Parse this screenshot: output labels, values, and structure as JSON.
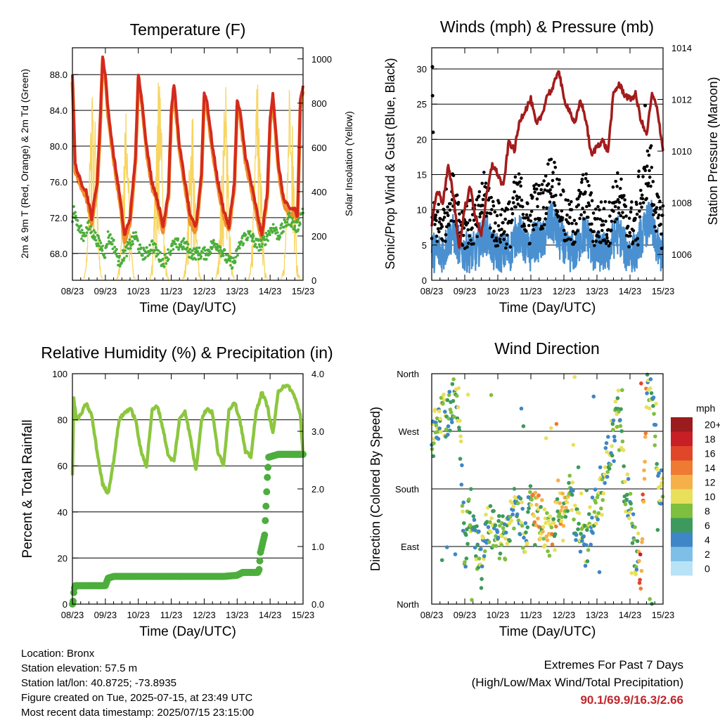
{
  "chart_data": [
    {
      "type": "line",
      "title": "Temperature (F)",
      "xlabel": "Time (Day/UTC)",
      "ylabel": "2m & 9m T (Red, Orange) & 2m Td (Green)",
      "ylabel_right": "Solar Insolation (Yellow)",
      "x_ticks": [
        "08/23",
        "09/23",
        "10/23",
        "11/23",
        "12/23",
        "13/23",
        "14/23",
        "15/23"
      ],
      "y_ticks": [
        "68.0",
        "72.0",
        "76.0",
        "80.0",
        "84.0",
        "88.0"
      ],
      "y_right_ticks": [
        "0",
        "200",
        "400",
        "600",
        "800",
        "1000"
      ],
      "ylim": [
        65,
        91
      ],
      "ylim_right": [
        0,
        1050
      ],
      "grid": true,
      "colors": {
        "t2m": "#d42a1e",
        "t9m": "#f0902a",
        "td": "#4cae3c",
        "solar": "#f7d560"
      },
      "series": [
        {
          "name": "2m T",
          "day_hours": [
            0,
            2,
            6,
            10,
            14,
            18,
            20,
            22,
            24,
            26,
            30,
            34,
            38,
            42,
            46,
            48,
            50,
            54,
            58,
            62,
            66,
            70,
            72,
            74,
            78,
            82,
            86,
            90,
            94,
            96,
            98,
            102,
            106,
            110,
            114,
            118,
            120,
            122,
            126,
            130,
            134,
            138,
            142,
            144,
            146,
            150,
            154,
            158,
            162,
            164,
            166,
            168
          ],
          "values": [
            88,
            78,
            76,
            75,
            72,
            76,
            82,
            90,
            88,
            84,
            79,
            75,
            70,
            72,
            79,
            88,
            86,
            80,
            76,
            74,
            71,
            75,
            84,
            87,
            80,
            76,
            72,
            71,
            77,
            86,
            85,
            80,
            76,
            73,
            71,
            76,
            85,
            84,
            79,
            76,
            73,
            70,
            75,
            83,
            86,
            78,
            74,
            73,
            73,
            72,
            85,
            87
          ]
        },
        {
          "name": "2m Td",
          "day_hours": [
            0,
            1,
            4,
            8,
            12,
            16,
            20,
            24,
            26,
            30,
            34,
            38,
            42,
            46,
            50,
            54,
            58,
            62,
            66,
            70,
            74,
            78,
            82,
            86,
            90,
            94,
            98,
            102,
            106,
            110,
            114,
            118,
            122,
            126,
            130,
            134,
            138,
            142,
            146,
            150,
            154,
            158,
            162,
            164,
            166,
            168
          ],
          "values": [
            72,
            73,
            71,
            70,
            71,
            70,
            69,
            68,
            70,
            69,
            67,
            68,
            69,
            70,
            68,
            68,
            69,
            68,
            67,
            68,
            69,
            69,
            69,
            68,
            68,
            68,
            68,
            69,
            69,
            68,
            67,
            67,
            69,
            70,
            70,
            69,
            69,
            70,
            71,
            70,
            71,
            72,
            71,
            71,
            72,
            73
          ]
        },
        {
          "name": "Solar Insolation",
          "peak_values": [
            980,
            780,
            1000,
            800,
            960,
            920,
            1000
          ]
        }
      ]
    },
    {
      "type": "scatter",
      "title": "Winds (mph) & Pressure (mb)",
      "xlabel": "Time (Day/UTC)",
      "ylabel": "Sonic/Prop Wind & Gust (Blue, Black)",
      "ylabel_right": "Station Pressure (Maroon)",
      "x_ticks": [
        "08/23",
        "09/23",
        "10/23",
        "11/23",
        "12/23",
        "13/23",
        "14/23",
        "15/23"
      ],
      "y_ticks": [
        "0",
        "5",
        "10",
        "15",
        "20",
        "25",
        "30"
      ],
      "y_right_ticks": [
        "1006",
        "1008",
        "1010",
        "1012",
        "1014"
      ],
      "ylim": [
        0,
        33
      ],
      "ylim_right": [
        1005,
        1014
      ],
      "grid": true,
      "colors": {
        "wind": "#4a90d0",
        "gust": "#000000",
        "pressure": "#a31c1c"
      },
      "series": [
        {
          "name": "Station Pressure",
          "day_hours": [
            0,
            4,
            8,
            12,
            16,
            20,
            24,
            28,
            32,
            36,
            40,
            44,
            48,
            52,
            56,
            60,
            64,
            68,
            72,
            76,
            80,
            84,
            88,
            92,
            96,
            100,
            104,
            108,
            112,
            116,
            120,
            124,
            128,
            132,
            136,
            140,
            144,
            148,
            152,
            156,
            160,
            164,
            168
          ],
          "values": [
            1007.2,
            1008.5,
            1008.0,
            1009.4,
            1008.2,
            1006.2,
            1007.8,
            1008.6,
            1007.4,
            1006.8,
            1008.3,
            1009.5,
            1009.1,
            1008.6,
            1010.4,
            1010.0,
            1011.2,
            1011.6,
            1012.0,
            1011.0,
            1011.4,
            1012.2,
            1012.4,
            1013.2,
            1012.0,
            1011.6,
            1011.0,
            1012.0,
            1011.2,
            1009.8,
            1010.2,
            1010.4,
            1010.0,
            1012.2,
            1012.6,
            1012.2,
            1012.0,
            1012.2,
            1011.2,
            1010.6,
            1012.2,
            1011.6,
            1010.0
          ]
        },
        {
          "name": "Wind",
          "typical_range": [
            1,
            9
          ]
        },
        {
          "name": "Gust",
          "typical_range": [
            3,
            15
          ],
          "max": 30.3
        }
      ]
    },
    {
      "type": "line",
      "title": "Relative Humidity (%) & Precipitation (in)",
      "xlabel": "Time (Day/UTC)",
      "ylabel": "Percent & Total Rainfall",
      "x_ticks": [
        "08/23",
        "09/23",
        "10/23",
        "11/23",
        "12/23",
        "13/23",
        "14/23",
        "15/23"
      ],
      "y_ticks": [
        "0",
        "20",
        "40",
        "60",
        "80",
        "100"
      ],
      "y_right_ticks": [
        "0.0",
        "1.0",
        "2.0",
        "3.0",
        "4.0"
      ],
      "ylim": [
        0,
        100
      ],
      "ylim_right": [
        0,
        4.0
      ],
      "grid": true,
      "colors": {
        "rh": "#8cc63f",
        "precip": "#4cae3c"
      },
      "series": [
        {
          "name": "Relative Humidity",
          "day_hours": [
            0,
            1,
            3,
            6,
            10,
            14,
            18,
            22,
            26,
            30,
            34,
            38,
            42,
            46,
            50,
            54,
            58,
            62,
            66,
            70,
            74,
            78,
            82,
            86,
            90,
            94,
            98,
            102,
            106,
            110,
            114,
            118,
            122,
            126,
            130,
            134,
            138,
            142,
            146,
            150,
            154,
            158,
            162,
            166,
            168
          ],
          "values": [
            56,
            89,
            80,
            82,
            87,
            82,
            66,
            52,
            48,
            62,
            80,
            83,
            85,
            80,
            66,
            60,
            84,
            86,
            76,
            64,
            62,
            80,
            84,
            72,
            58,
            80,
            85,
            83,
            66,
            60,
            84,
            88,
            80,
            66,
            64,
            84,
            92,
            86,
            74,
            92,
            95,
            94,
            90,
            82,
            65
          ]
        },
        {
          "name": "Total Precipitation",
          "day_hours": [
            0,
            0.5,
            1,
            1.5,
            2,
            14,
            24,
            26,
            30,
            60,
            90,
            110,
            120,
            124,
            135,
            136,
            137,
            140,
            141,
            142,
            143,
            150,
            168
          ],
          "values": [
            0,
            0.05,
            0.2,
            0.28,
            0.32,
            0.32,
            0.32,
            0.45,
            0.48,
            0.48,
            0.48,
            0.48,
            0.5,
            0.55,
            0.55,
            0.6,
            0.9,
            1.2,
            1.7,
            2.2,
            2.55,
            2.6,
            2.6
          ]
        }
      ]
    },
    {
      "type": "scatter",
      "title": "Wind Direction",
      "xlabel": "Time (Day/UTC)",
      "ylabel": "Direction (Colored By Speed)",
      "x_ticks": [
        "08/23",
        "09/23",
        "10/23",
        "11/23",
        "12/23",
        "13/23",
        "14/23",
        "15/23"
      ],
      "y_ticks": [
        "North",
        "East",
        "South",
        "West",
        "North"
      ],
      "ylim": [
        0,
        360
      ],
      "legend": "right",
      "colorbar": {
        "title": "mph",
        "labels": [
          "0",
          "2",
          "4",
          "6",
          "8",
          "10",
          "12",
          "14",
          "16",
          "18",
          "20+"
        ],
        "colors": [
          "#b8e3f7",
          "#7ebfe8",
          "#3f86c6",
          "#3e9a5c",
          "#7fbf3f",
          "#e8e05a",
          "#f5b04a",
          "#ef7a32",
          "#e0462a",
          "#c81e26",
          "#9b1b1e"
        ]
      },
      "series": [
        {
          "name": "Direction",
          "day_hours": [
            0,
            4,
            8,
            12,
            16,
            20,
            24,
            28,
            32,
            36,
            40,
            44,
            48,
            52,
            56,
            60,
            64,
            68,
            72,
            76,
            80,
            84,
            88,
            92,
            96,
            100,
            104,
            108,
            112,
            116,
            120,
            124,
            128,
            132,
            136,
            140,
            144,
            148,
            152,
            156,
            160,
            164,
            168
          ],
          "values": [
            260,
            280,
            300,
            290,
            320,
            300,
            80,
            150,
            110,
            60,
            130,
            120,
            110,
            90,
            130,
            150,
            140,
            110,
            160,
            140,
            130,
            110,
            100,
            150,
            160,
            170,
            140,
            110,
            90,
            130,
            160,
            170,
            240,
            260,
            320,
            180,
            160,
            80,
            40,
            340,
            330,
            200,
            180
          ]
        }
      ]
    }
  ],
  "footer": {
    "location": "Location: Bronx",
    "elevation": "Station elevation: 57.5 m",
    "latlon": "Station lat/lon: 40.8725; -73.8935",
    "created": "Figure created on Tue, 2025-07-15, at 23:49 UTC",
    "recent": "Most recent data timestamp: 2025/07/15 23:15:00"
  },
  "extremes": {
    "title": "Extremes For Past 7 Days",
    "subtitle": "(High/Low/Max Wind/Total Precipitation)",
    "values": "90.1/69.9/16.3/2.66"
  }
}
